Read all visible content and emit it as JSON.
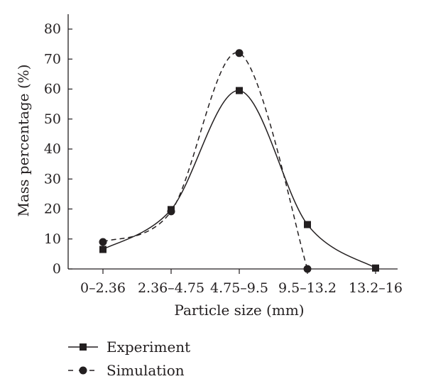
{
  "chart_data": {
    "type": "line",
    "title": "",
    "xlabel": "Particle size (mm)",
    "ylabel": "Mass percentage (%)",
    "categories": [
      "0–2.36",
      "2.36–4.75",
      "4.75–9.5",
      "9.5–13.2",
      "13.2–16"
    ],
    "ylim": [
      0,
      85
    ],
    "yticks": [
      0,
      10,
      20,
      30,
      40,
      50,
      60,
      70,
      80
    ],
    "grid": false,
    "legend_position": "bottom-left",
    "series": [
      {
        "name": "Experiment",
        "values": [
          6.5,
          19.8,
          59.5,
          14.8,
          0.3
        ],
        "line_style": "solid",
        "marker": "square",
        "color": "#231f20"
      },
      {
        "name": "Simulation",
        "values": [
          9.0,
          19.2,
          72.0,
          0.0,
          null
        ],
        "line_style": "dashed",
        "marker": "circle",
        "color": "#231f20"
      }
    ]
  }
}
